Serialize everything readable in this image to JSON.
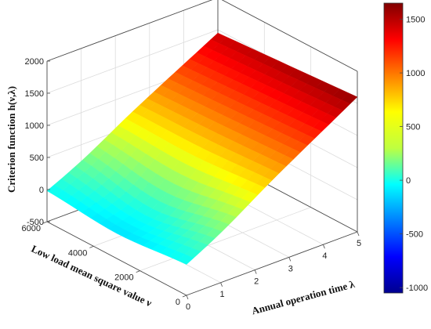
{
  "chart_data": {
    "type": "surface",
    "zlabel": "Criterion function h(ν,λ)",
    "ylabel": "Low load mean square value ν",
    "xlabel": "Annual operation time λ",
    "x_ticks": [
      "0",
      "1",
      "2",
      "3",
      "4",
      "5"
    ],
    "y_ticks": [
      "0",
      "2000",
      "4000",
      "6000"
    ],
    "z_ticks": [
      "-500",
      "0",
      "500",
      "1000",
      "1500",
      "2000"
    ],
    "colorbar_ticks": [
      "-1000",
      "-500",
      "0",
      "500",
      "1000",
      "1500"
    ],
    "xlim": [
      0,
      5
    ],
    "ylim": [
      0,
      6000
    ],
    "zlim": [
      -500,
      2000
    ],
    "clim": [
      -1050,
      1650
    ],
    "grid": true,
    "colormap": "jet",
    "surface_extremes": [
      {
        "lambda": 0,
        "nu": 0,
        "h": 0
      },
      {
        "lambda": 0,
        "nu": 6000,
        "h": 0
      },
      {
        "lambda": 5,
        "nu": 0,
        "h": 1600
      },
      {
        "lambda": 5,
        "nu": 6000,
        "h": 1450
      },
      {
        "lambda": 1,
        "nu": 3000,
        "h": -250
      }
    ]
  }
}
